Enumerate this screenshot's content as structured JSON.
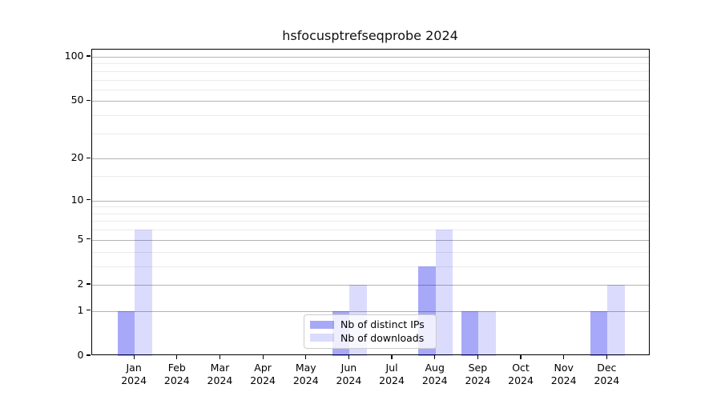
{
  "chart_data": {
    "type": "bar",
    "title": "hsfocusptrefseqprobe 2024",
    "xlabel": "",
    "ylabel": "",
    "year_line": "2024",
    "categories": [
      "Jan",
      "Feb",
      "Mar",
      "Apr",
      "May",
      "Jun",
      "Jul",
      "Aug",
      "Sep",
      "Oct",
      "Nov",
      "Dec"
    ],
    "series": [
      {
        "name": "Nb of distinct IPs",
        "fill": "#0000ee57",
        "solid_equivalent": "#a9a9fa",
        "values": [
          1,
          0,
          0,
          0,
          0,
          1,
          0,
          3,
          1,
          0,
          0,
          1
        ]
      },
      {
        "name": "Nb of downloads",
        "fill": "#0000ee24",
        "solid_equivalent": "#dcdcfa",
        "values": [
          6,
          0,
          0,
          0,
          0,
          2,
          0,
          6,
          1,
          0,
          0,
          2
        ]
      }
    ],
    "scale": "log1p",
    "ylim": [
      0,
      113
    ],
    "y_ticks_major": [
      0,
      1,
      2,
      5,
      10,
      20,
      50,
      100
    ],
    "y_ticks_minor": [
      3,
      4,
      6,
      7,
      8,
      9,
      15,
      30,
      40,
      60,
      70,
      80,
      90
    ],
    "grid": "horizontal",
    "legend_position": "lower-center",
    "colors": {
      "grid_major": "#b3b3b3",
      "grid_minor": "#ebebeb",
      "spine": "#000000",
      "background": "#ffffff"
    }
  }
}
